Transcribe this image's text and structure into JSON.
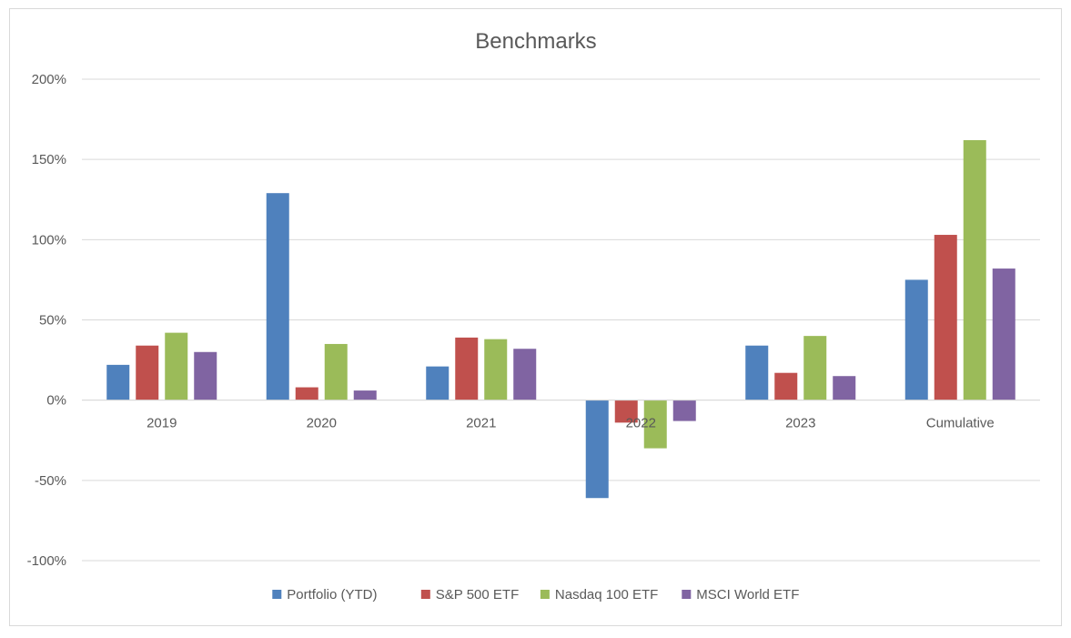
{
  "chart_data": {
    "type": "bar",
    "title": "Benchmarks",
    "xlabel": "",
    "ylabel": "",
    "categories": [
      "2019",
      "2020",
      "2021",
      "2022",
      "2023",
      "Cumulative"
    ],
    "series": [
      {
        "name": "Portfolio (YTD)",
        "color": "#4f81bd",
        "values": [
          22,
          129,
          21,
          -61,
          34,
          75
        ]
      },
      {
        "name": "S&P 500 ETF",
        "color": "#c0504d",
        "values": [
          34,
          8,
          39,
          -14,
          17,
          103
        ]
      },
      {
        "name": "Nasdaq 100 ETF",
        "color": "#9bbb59",
        "values": [
          42,
          35,
          38,
          -30,
          40,
          162
        ]
      },
      {
        "name": "MSCI World ETF",
        "color": "#8064a2",
        "values": [
          30,
          6,
          32,
          -13,
          15,
          82
        ]
      }
    ],
    "ylim": [
      -100,
      200
    ],
    "yticks": [
      200,
      150,
      100,
      50,
      0,
      -50,
      -100
    ],
    "ytick_labels": [
      "200%",
      "150%",
      "100%",
      "50%",
      "0%",
      "-50%",
      "-100%"
    ],
    "grid": true,
    "legend": "bottom"
  }
}
